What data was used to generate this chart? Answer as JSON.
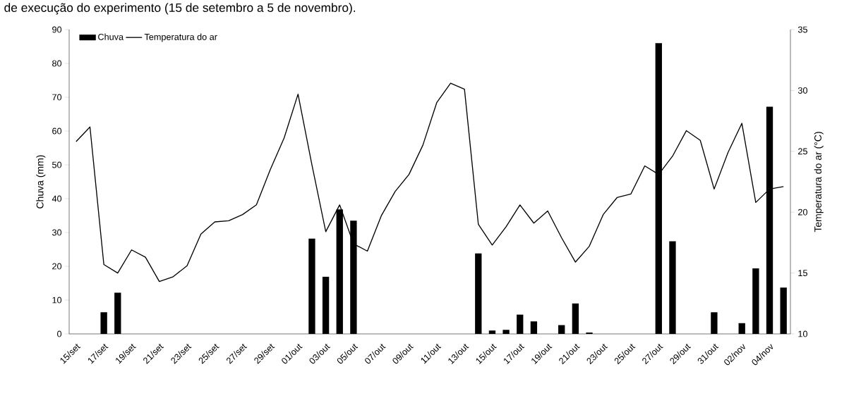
{
  "chart_data": {
    "type": "bar",
    "annotations": [
      "de execução do experimento (15 de setembro a 5 de novembro)."
    ],
    "ylabel": "Chuva (mm)",
    "y2label": "Temperatura do ar (°C)",
    "categories": [
      "15/set",
      null,
      "17/set",
      null,
      "19/set",
      null,
      "21/set",
      null,
      "23/set",
      null,
      "25/set",
      null,
      "27/set",
      null,
      "29/set",
      null,
      "01/out",
      null,
      "03/out",
      null,
      "05/out",
      null,
      "07/out",
      null,
      "09/out",
      null,
      "11/out",
      null,
      "13/out",
      null,
      "15/out",
      null,
      "17/out",
      null,
      "19/out",
      null,
      "21/out",
      null,
      "23/out",
      null,
      "25/out",
      null,
      "27/out",
      null,
      "29/out",
      null,
      "31/out",
      null,
      "02/nov",
      null,
      "04/nov",
      null
    ],
    "series": [
      {
        "name": "Chuva",
        "color": "#000000",
        "values": [
          0,
          0,
          6.4,
          12.2,
          0,
          0,
          0,
          0,
          0,
          0,
          0,
          0,
          0,
          0,
          0,
          0,
          0,
          28.2,
          16.9,
          36.8,
          33.5,
          0,
          0,
          0,
          0,
          0,
          0,
          0,
          0,
          23.8,
          1.0,
          1.2,
          5.7,
          3.7,
          0,
          2.6,
          9.0,
          0.4,
          0,
          0,
          0,
          0,
          86.0,
          27.4,
          0,
          0,
          6.4,
          0,
          3.2,
          19.4,
          67.2,
          13.7
        ]
      },
      {
        "name": "Temperatura do ar",
        "type": "line",
        "axis": "y2",
        "color": "#000000",
        "values": [
          25.8,
          27.0,
          15.7,
          15.0,
          16.9,
          16.3,
          14.3,
          14.7,
          15.6,
          18.2,
          19.2,
          19.3,
          19.8,
          20.6,
          23.5,
          26.1,
          29.7,
          23.9,
          18.4,
          20.6,
          17.4,
          16.8,
          19.7,
          21.7,
          23.1,
          25.5,
          29.0,
          30.6,
          30.1,
          19.0,
          17.3,
          18.8,
          20.6,
          19.1,
          20.1,
          17.9,
          15.9,
          17.2,
          19.8,
          21.2,
          21.5,
          23.8,
          23.1,
          24.6,
          26.7,
          25.9,
          21.9,
          24.9,
          27.3,
          20.8,
          21.9,
          22.1
        ]
      }
    ],
    "ylim": [
      0,
      90
    ],
    "yticks": [
      0,
      10,
      20,
      30,
      40,
      50,
      60,
      70,
      80,
      90
    ],
    "y2lim": [
      10,
      35
    ],
    "y2ticks": [
      10,
      15,
      20,
      25,
      30,
      35
    ],
    "legend": "top left"
  }
}
